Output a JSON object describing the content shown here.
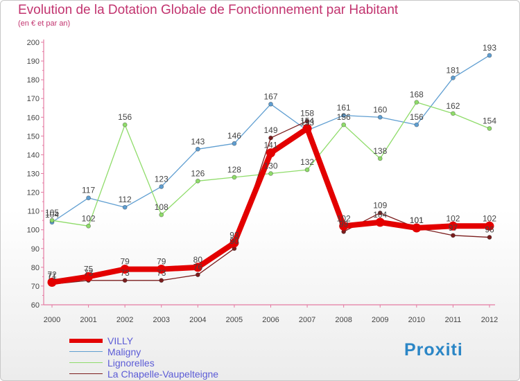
{
  "chart_data": {
    "type": "line",
    "title": "Evolution de la Dotation Globale de Fonctionnement par Habitant",
    "subtitle": "(en € et par an)",
    "xlabel": "",
    "ylabel": "",
    "categories": [
      "2000",
      "2001",
      "2002",
      "2003",
      "2004",
      "2005",
      "2006",
      "2007",
      "2008",
      "2009",
      "2010",
      "2011",
      "2012"
    ],
    "ylim": [
      60,
      200
    ],
    "yticks": [
      60,
      70,
      80,
      90,
      100,
      110,
      120,
      130,
      140,
      150,
      160,
      170,
      180,
      190,
      200
    ],
    "grid": false,
    "legend_position": "bottom-left",
    "series": [
      {
        "name": "VILLY",
        "color": "#e30000",
        "values": [
          72,
          75,
          79,
          79,
          80,
          93,
          141,
          154,
          102,
          104,
          101,
          102,
          102
        ],
        "labels": [
          "72",
          "75",
          "79",
          "79",
          "80",
          "93",
          "141",
          "154",
          "102",
          "104",
          "101",
          "102",
          "102"
        ]
      },
      {
        "name": "Maligny",
        "color": "#5f9ed1",
        "values": [
          104,
          117,
          112,
          123,
          143,
          146,
          167,
          153,
          161,
          160,
          156,
          181,
          193
        ],
        "labels": [
          "104",
          "117",
          "112",
          "123",
          "143",
          "146",
          "167",
          "153",
          "161",
          "160",
          "156",
          "181",
          "193"
        ]
      },
      {
        "name": "Lignorelles",
        "color": "#8fdc6a",
        "values": [
          105,
          102,
          156,
          108,
          126,
          128,
          130,
          132,
          156,
          138,
          168,
          162,
          154
        ],
        "labels": [
          "105",
          "102",
          "156",
          "108",
          "126",
          "128",
          "130",
          "132",
          "156",
          "138",
          "168",
          "162",
          "154"
        ]
      },
      {
        "name": "La Chapelle-Vaupelteigne",
        "color": "#7b1d1d",
        "values": [
          71,
          73,
          73,
          73,
          76,
          90,
          149,
          158,
          99,
          109,
          101,
          97,
          96
        ],
        "labels": [
          "71",
          "73",
          "73",
          "73",
          "76",
          "90",
          "149",
          "158",
          "99",
          "109",
          "101",
          "97",
          "96"
        ]
      }
    ]
  },
  "brand": {
    "logo_text": "Proxiti"
  }
}
